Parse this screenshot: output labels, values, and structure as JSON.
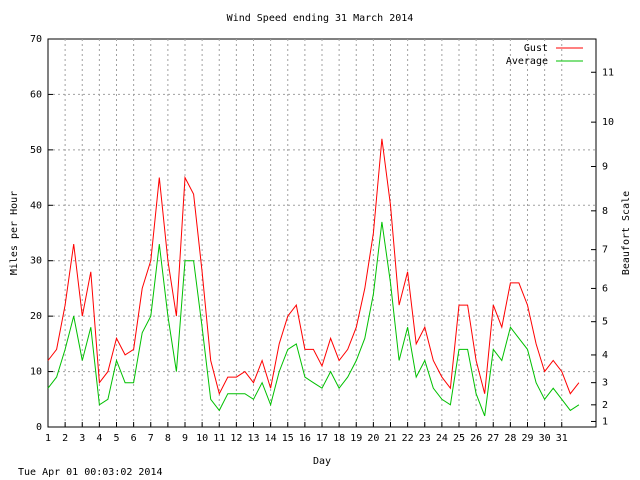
{
  "chart_data": {
    "type": "line",
    "title": "Wind Speed ending 31 March 2014",
    "xlabel": "Day",
    "ylabel": "Miles per Hour",
    "y2label": "Beaufort Scale",
    "footer": "Tue Apr 01 00:03:02 2014",
    "x": [
      1,
      1.5,
      2,
      2.5,
      3,
      3.5,
      4,
      4.5,
      5,
      5.5,
      6,
      6.5,
      7,
      7.5,
      8,
      8.5,
      9,
      9.5,
      10,
      10.5,
      11,
      11.5,
      12,
      12.5,
      13,
      13.5,
      14,
      14.5,
      15,
      15.5,
      16,
      16.5,
      17,
      17.5,
      18,
      18.5,
      19,
      19.5,
      20,
      20.5,
      21,
      21.5,
      22,
      22.5,
      23,
      23.5,
      24,
      24.5,
      25,
      25.5,
      26,
      26.5,
      27,
      27.5,
      28,
      28.5,
      29,
      29.5,
      30,
      30.5,
      31,
      31.5,
      32
    ],
    "series": [
      {
        "name": "Gust",
        "color": "#ff0000",
        "values": [
          12,
          14,
          22,
          33,
          20,
          28,
          8,
          10,
          16,
          13,
          14,
          25,
          30,
          45,
          30,
          20,
          45,
          42,
          28,
          12,
          6,
          9,
          9,
          10,
          8,
          12,
          7,
          15,
          20,
          22,
          14,
          14,
          11,
          16,
          12,
          14,
          18,
          25,
          35,
          52,
          40,
          22,
          28,
          15,
          18,
          12,
          9,
          7,
          22,
          22,
          12,
          6,
          22,
          18,
          26,
          26,
          22,
          15,
          10,
          12,
          10,
          6,
          8
        ]
      },
      {
        "name": "Average",
        "color": "#00c000",
        "values": [
          7,
          9,
          14,
          20,
          12,
          18,
          4,
          5,
          12,
          8,
          8,
          17,
          20,
          33,
          20,
          10,
          30,
          30,
          18,
          5,
          3,
          6,
          6,
          6,
          5,
          8,
          4,
          10,
          14,
          15,
          9,
          8,
          7,
          10,
          7,
          9,
          12,
          16,
          24,
          37,
          26,
          12,
          18,
          9,
          12,
          7,
          5,
          4,
          14,
          14,
          6,
          2,
          14,
          12,
          18,
          16,
          14,
          8,
          5,
          7,
          5,
          3,
          4
        ]
      }
    ],
    "xlim": [
      1,
      33
    ],
    "xticks": [
      1,
      2,
      3,
      4,
      5,
      6,
      7,
      8,
      9,
      10,
      11,
      12,
      13,
      14,
      15,
      16,
      17,
      18,
      19,
      20,
      21,
      22,
      23,
      24,
      25,
      26,
      27,
      28,
      29,
      30,
      31
    ],
    "ylim": [
      0,
      70
    ],
    "yticks": [
      0,
      10,
      20,
      30,
      40,
      50,
      60,
      70
    ],
    "y2lim": [
      0,
      70
    ],
    "y2ticks": [
      1,
      {
        "value": 4,
        "label": "2"
      },
      {
        "value": 8,
        "label": "3"
      },
      {
        "value": 13,
        "label": "4"
      },
      {
        "value": 19,
        "label": "5"
      },
      {
        "value": 25,
        "label": "6"
      },
      {
        "value": 32,
        "label": "7"
      },
      {
        "value": 39,
        "label": "8"
      },
      {
        "value": 47,
        "label": "9"
      },
      {
        "value": 55,
        "label": "10"
      },
      {
        "value": 64,
        "label": "11"
      }
    ],
    "grid": true,
    "legend": "top-right"
  }
}
